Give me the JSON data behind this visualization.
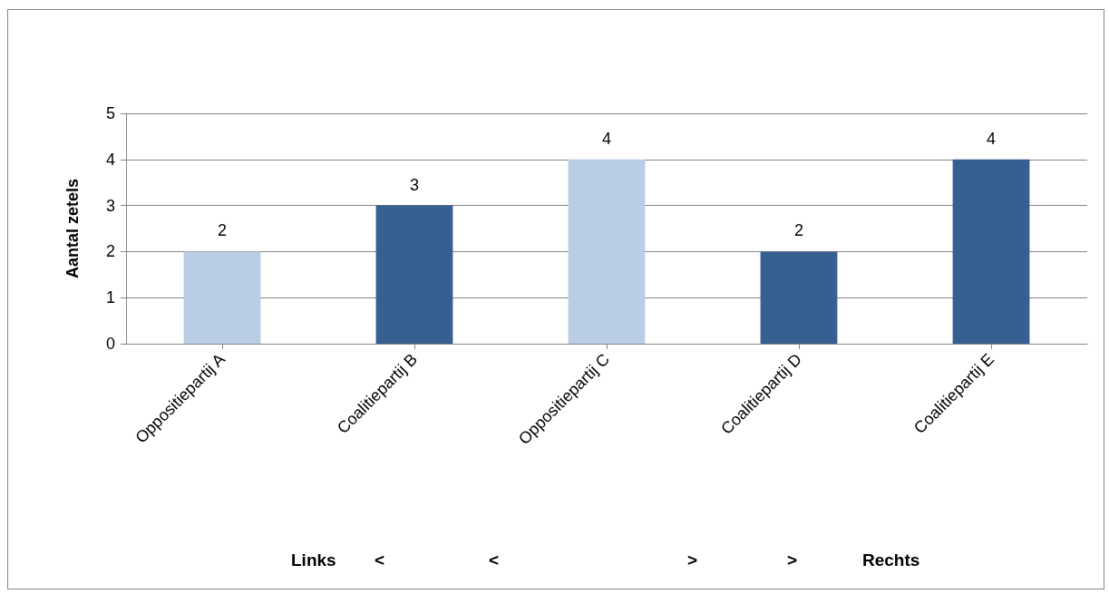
{
  "chart_data": {
    "type": "bar",
    "ylabel": "Aantal zetels",
    "categories": [
      "Oppositiepartij A",
      "Coalitiepartij B",
      "Oppositiepartij C",
      "Coalitiepartij D",
      "Coalitiepartij E"
    ],
    "values": [
      2,
      3,
      4,
      2,
      4
    ],
    "colors": [
      "#b9cde5",
      "#366092",
      "#b9cde5",
      "#366092",
      "#366092"
    ],
    "ylim": [
      0,
      5
    ],
    "yticks": [
      0,
      1,
      2,
      3,
      4,
      5
    ],
    "grid": "y",
    "data_labels": true,
    "annotations": [
      "Links",
      "<",
      "<",
      ">",
      ">",
      "Rechts"
    ]
  }
}
